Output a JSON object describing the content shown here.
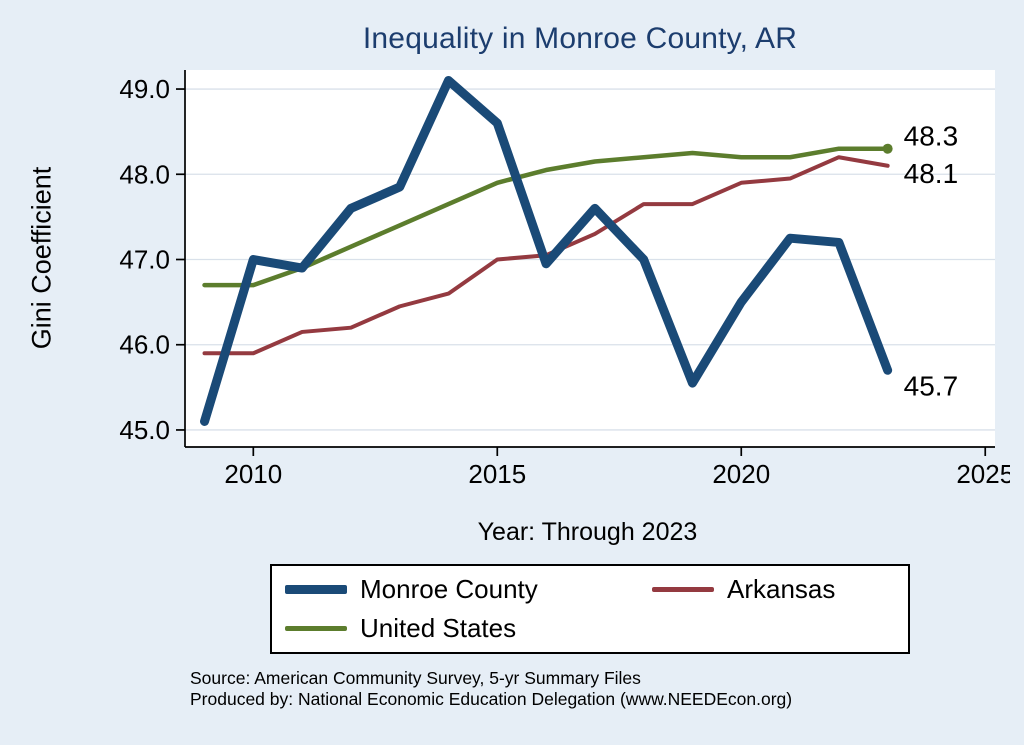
{
  "page": {
    "background_color": "#e6eef6"
  },
  "chart_data": {
    "type": "line",
    "title": "Inequality in Monroe County, AR",
    "title_color": "#1c3d6e",
    "xlabel": "Year: Through 2023",
    "ylabel": "Gini Coefficient",
    "xlim": [
      2008.6,
      2025.2
    ],
    "ylim": [
      44.8,
      49.2
    ],
    "grid": "horizontal",
    "gridline_color": "#d9e1ea",
    "legend_position": "bottom-center",
    "x": [
      2009,
      2010,
      2011,
      2012,
      2013,
      2014,
      2015,
      2016,
      2017,
      2018,
      2019,
      2020,
      2021,
      2022,
      2023
    ],
    "xticks": [
      {
        "label": "2010",
        "value": 2010
      },
      {
        "label": "2015",
        "value": 2015
      },
      {
        "label": "2020",
        "value": 2020
      },
      {
        "label": "2025",
        "value": 2025
      }
    ],
    "yticks": [
      {
        "label": "45.0",
        "value": 45.0
      },
      {
        "label": "46.0",
        "value": 46.0
      },
      {
        "label": "47.0",
        "value": 47.0
      },
      {
        "label": "48.0",
        "value": 48.0
      },
      {
        "label": "49.0",
        "value": 49.0
      }
    ],
    "series": [
      {
        "name": "Monroe County",
        "color": "#1a4a77",
        "width": 9,
        "end_label": "45.7",
        "end_label_dy": 15,
        "values": [
          45.1,
          47.0,
          46.9,
          47.6,
          47.85,
          49.1,
          48.6,
          46.95,
          47.6,
          47.0,
          45.55,
          46.5,
          47.25,
          47.2,
          45.7
        ]
      },
      {
        "name": "Arkansas",
        "color": "#943a40",
        "width": 4,
        "end_label": "48.1",
        "end_label_dy": 7,
        "values": [
          45.9,
          45.9,
          46.15,
          46.2,
          46.45,
          46.6,
          47.0,
          47.05,
          47.3,
          47.65,
          47.65,
          47.9,
          47.95,
          48.2,
          48.1
        ]
      },
      {
        "name": "United States",
        "color": "#5c7d2d",
        "width": 4.5,
        "end_label": "48.3",
        "end_label_dy": -13,
        "end_marker": true,
        "values": [
          46.7,
          46.7,
          46.9,
          47.15,
          47.4,
          47.65,
          47.9,
          48.05,
          48.15,
          48.2,
          48.25,
          48.2,
          48.2,
          48.3,
          48.3
        ]
      }
    ]
  },
  "notes": {
    "source": "Source: American Community Survey, 5-yr Summary Files",
    "produced_by": "Produced by: National Economic Education Delegation (www.NEEDEcon.org)"
  }
}
